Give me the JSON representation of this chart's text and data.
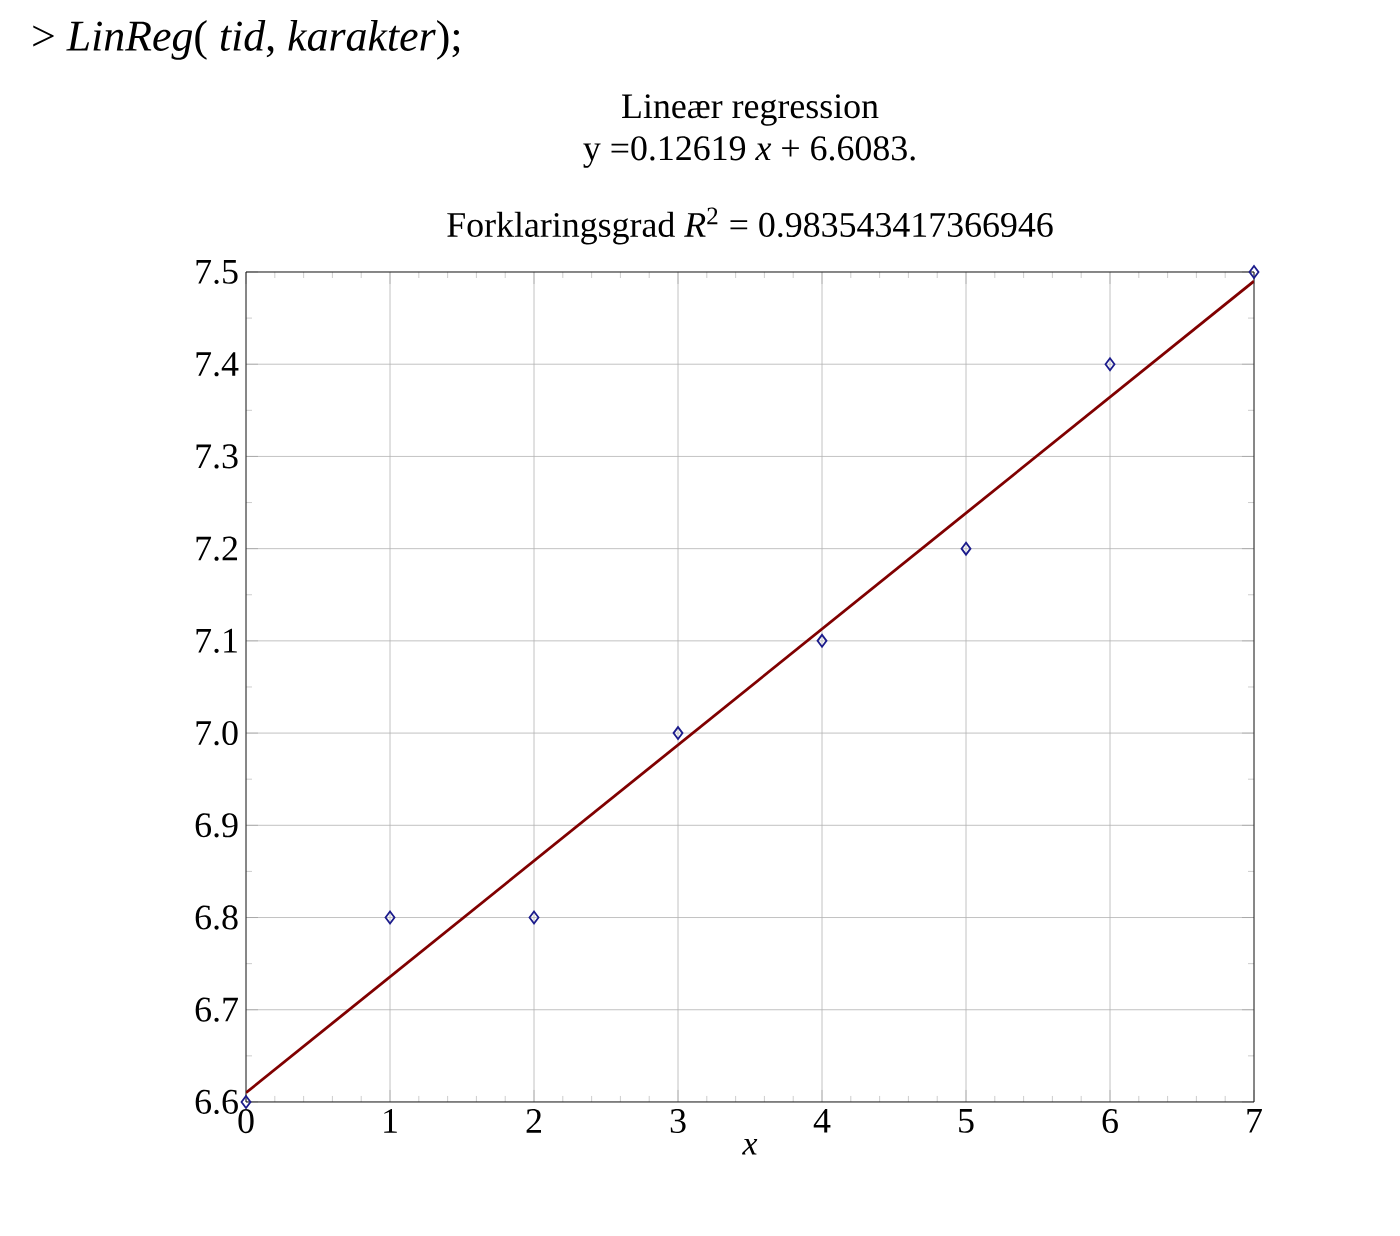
{
  "chart_data": {
    "type": "scatter",
    "title": "Lineær regression",
    "subtitle": "y =0.12619 *x* + 6.6083.",
    "annotations": [
      "Forklaringsgrad *R*$^{2}$ = 0.983543417366946",
      "> *LinReg*( *tid*, *karakter*);"
    ],
    "xlabel": "*x*",
    "x": [
      0,
      1,
      2,
      3,
      4,
      5,
      6,
      7
    ],
    "series": [
      {
        "color": "#1c1c8c",
        "values": [
          6.6,
          6.8,
          6.8,
          7.0,
          7.1,
          7.2,
          7.4,
          7.5
        ]
      },
      {
        "type": "line",
        "color": "#800000",
        "marker": "none",
        "x": [
          0,
          7
        ],
        "values": [
          6.61,
          7.49
        ]
      }
    ],
    "xlim": [
      0,
      7
    ],
    "ylim": [
      6.6,
      7.5
    ],
    "xticks": [
      0,
      1,
      2,
      3,
      4,
      5,
      6,
      7
    ],
    "yticks": [
      6.6,
      6.7,
      6.8,
      6.9,
      {
        "value": 7.0,
        "label": "7.0"
      },
      7.1,
      7.2,
      7.3,
      7.4,
      7.5
    ],
    "grid": true,
    "marker": "diamond"
  }
}
